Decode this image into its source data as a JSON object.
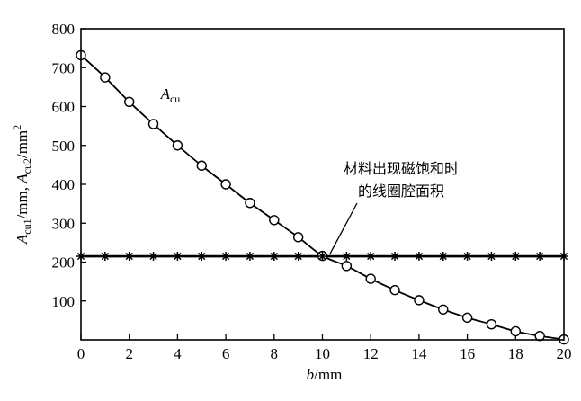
{
  "chart_data": {
    "type": "line",
    "xlabel": {
      "var": "b",
      "unit": "/mm"
    },
    "ylabel": {
      "var1": "A",
      "sub1": "cu1",
      "unit1": "/mm, ",
      "var2": "A",
      "sub2": "cu2",
      "unit2": "/mm",
      "sup2": "2"
    },
    "xlim": [
      0,
      20
    ],
    "ylim": [
      0,
      800
    ],
    "x_ticks": [
      0,
      2,
      4,
      6,
      8,
      10,
      12,
      14,
      16,
      18,
      20
    ],
    "y_ticks": [
      100,
      200,
      300,
      400,
      500,
      600,
      700,
      800
    ],
    "grid": false,
    "series": [
      {
        "name": {
          "var": "A",
          "sub": "cu"
        },
        "marker": "circle",
        "x": [
          0,
          1,
          2,
          3,
          4,
          5,
          6,
          7,
          8,
          9,
          10,
          11,
          12,
          13,
          14,
          15,
          16,
          17,
          18,
          19,
          20
        ],
        "y": [
          732,
          675,
          612,
          555,
          500,
          448,
          400,
          352,
          308,
          264,
          216,
          190,
          157,
          128,
          102,
          78,
          57,
          40,
          22,
          10,
          1
        ]
      },
      {
        "marker": "asterisk",
        "x": [
          0,
          1,
          2,
          3,
          4,
          5,
          6,
          7,
          8,
          9,
          10,
          11,
          12,
          13,
          14,
          15,
          16,
          17,
          18,
          19,
          20
        ],
        "y": [
          215,
          215,
          215,
          215,
          215,
          215,
          215,
          215,
          215,
          215,
          215,
          215,
          215,
          215,
          215,
          215,
          215,
          215,
          215,
          215,
          215
        ]
      }
    ],
    "annotation": {
      "line1": "材料出现磁饱和时",
      "line2": "的线圈腔面积",
      "target": {
        "x": 10.3,
        "y": 215
      }
    }
  }
}
